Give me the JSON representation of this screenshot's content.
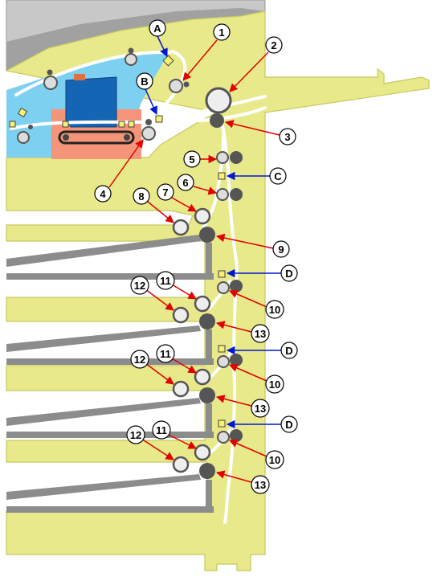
{
  "colors": {
    "body": "#e8e98a",
    "body_stroke": "#c8c860",
    "cover": "#9a9a9a",
    "cover_light": "#c8c8c8",
    "scanner_blue": "#7dd0f0",
    "salmon": "#f4957a",
    "drum_blue": "#1565b5",
    "tray": "#8c8c8c",
    "sensor": "#f7f070",
    "driven_roller": "#555555",
    "arrow_red": "#e00000",
    "arrow_blue": "#0018d0",
    "callout_fill": "#ffffff",
    "callout_stroke": "#000000"
  },
  "sensor_labels": [
    {
      "id": "A",
      "text": "A"
    },
    {
      "id": "B",
      "text": "B"
    },
    {
      "id": "C",
      "text": "C"
    },
    {
      "id": "D1",
      "text": "D"
    },
    {
      "id": "D2",
      "text": "D"
    },
    {
      "id": "D3",
      "text": "D"
    }
  ],
  "roller_labels": [
    {
      "id": "r1",
      "text": "1"
    },
    {
      "id": "r2",
      "text": "2"
    },
    {
      "id": "r3",
      "text": "3"
    },
    {
      "id": "r4",
      "text": "4"
    },
    {
      "id": "r5",
      "text": "5"
    },
    {
      "id": "r6",
      "text": "6"
    },
    {
      "id": "r7",
      "text": "7"
    },
    {
      "id": "r8",
      "text": "8"
    },
    {
      "id": "r9",
      "text": "9"
    },
    {
      "id": "r10a",
      "text": "10"
    },
    {
      "id": "r11a",
      "text": "11"
    },
    {
      "id": "r12a",
      "text": "12"
    },
    {
      "id": "r13a",
      "text": "13"
    },
    {
      "id": "r10b",
      "text": "10"
    },
    {
      "id": "r11b",
      "text": "11"
    },
    {
      "id": "r12b",
      "text": "12"
    },
    {
      "id": "r13b",
      "text": "13"
    },
    {
      "id": "r10c",
      "text": "10"
    },
    {
      "id": "r11c",
      "text": "11"
    },
    {
      "id": "r12c",
      "text": "12"
    },
    {
      "id": "r13c",
      "text": "13"
    }
  ]
}
